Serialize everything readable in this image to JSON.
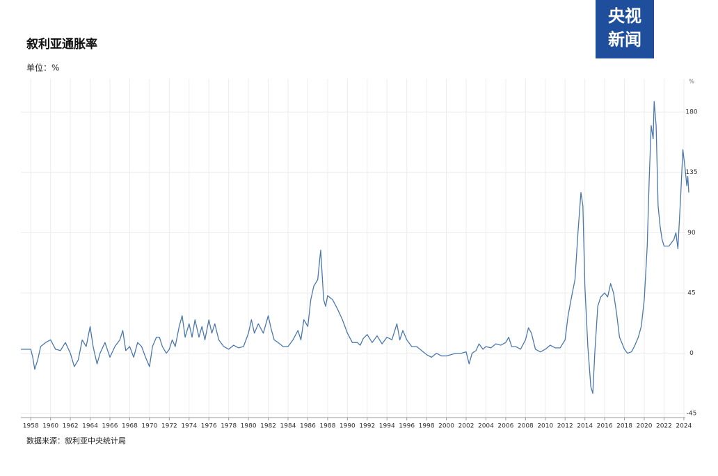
{
  "chart_data": {
    "type": "line",
    "title": "叙利亚通胀率",
    "subtitle": "单位：%",
    "y_unit": "%",
    "source": "数据来源：叙利亚中央统计局",
    "logo": [
      "央视",
      "新闻"
    ],
    "grid": true,
    "xlim": [
      1957,
      2024.5
    ],
    "xticks": [
      1958,
      1960,
      1962,
      1964,
      1966,
      1968,
      1970,
      1972,
      1974,
      1976,
      1978,
      1980,
      1982,
      1984,
      1986,
      1988,
      1990,
      1992,
      1994,
      1996,
      1998,
      2000,
      2002,
      2004,
      2006,
      2008,
      2010,
      2012,
      2014,
      2016,
      2018,
      2020,
      2022,
      2024
    ],
    "ylim": [
      -48,
      205
    ],
    "yticks": [
      -45,
      0,
      45,
      90,
      135,
      180
    ],
    "x": [
      1957,
      1957.5,
      1958,
      1958.2,
      1958.4,
      1958.7,
      1959,
      1959.5,
      1960,
      1960.5,
      1961,
      1961.5,
      1962,
      1962.4,
      1962.8,
      1963.2,
      1963.6,
      1964,
      1964.3,
      1964.7,
      1965,
      1965.5,
      1966,
      1966.5,
      1967,
      1967.3,
      1967.6,
      1968,
      1968.4,
      1968.8,
      1969.2,
      1969.6,
      1970,
      1970.3,
      1970.7,
      1971,
      1971.3,
      1971.7,
      1972,
      1972.3,
      1972.6,
      1973,
      1973.3,
      1973.6,
      1974,
      1974.3,
      1974.6,
      1975,
      1975.3,
      1975.6,
      1976,
      1976.3,
      1976.6,
      1977,
      1977.5,
      1978,
      1978.5,
      1979,
      1979.5,
      1980,
      1980.3,
      1980.6,
      1981,
      1981.5,
      1982,
      1982.3,
      1982.6,
      1983,
      1983.5,
      1984,
      1984.5,
      1985,
      1985.3,
      1985.6,
      1986,
      1986.3,
      1986.6,
      1987,
      1987.3,
      1987.6,
      1987.8,
      1988,
      1988.5,
      1989,
      1989.5,
      1990,
      1990.5,
      1991,
      1991.3,
      1991.6,
      1992,
      1992.5,
      1993,
      1993.5,
      1994,
      1994.5,
      1995,
      1995.3,
      1995.6,
      1996,
      1996.5,
      1997,
      1997.5,
      1998,
      1998.5,
      1999,
      1999.5,
      2000,
      2000.5,
      2001,
      2001.5,
      2002,
      2002.3,
      2002.6,
      2003,
      2003.3,
      2003.7,
      2004,
      2004.5,
      2005,
      2005.5,
      2006,
      2006.3,
      2006.6,
      2007,
      2007.5,
      2008,
      2008.3,
      2008.6,
      2009,
      2009.5,
      2010,
      2010.5,
      2011,
      2011.5,
      2012,
      2012.3,
      2012.6,
      2013,
      2013.3,
      2013.6,
      2013.8,
      2014,
      2014.3,
      2014.6,
      2014.8,
      2015,
      2015.3,
      2015.6,
      2016,
      2016.3,
      2016.6,
      2016.9,
      2017.2,
      2017.5,
      2018,
      2018.3,
      2018.7,
      2019,
      2019.4,
      2019.7,
      2020,
      2020.3,
      2020.5,
      2020.7,
      2020.9,
      2021,
      2021.2,
      2021.4,
      2021.6,
      2021.8,
      2022,
      2022.5,
      2023,
      2023.2,
      2023.4,
      2023.7,
      2023.9,
      2024.1,
      2024.3,
      2024.4,
      2024.5
    ],
    "series": [
      {
        "color": "#4a78ad",
        "values": [
          3,
          3,
          3,
          -3,
          -12,
          -5,
          5,
          8,
          10,
          3,
          2,
          8,
          0,
          -10,
          -5,
          10,
          5,
          20,
          5,
          -8,
          0,
          8,
          -3,
          5,
          10,
          17,
          2,
          5,
          -3,
          8,
          5,
          -3,
          -10,
          5,
          12,
          12,
          5,
          0,
          3,
          10,
          5,
          20,
          28,
          12,
          22,
          12,
          25,
          12,
          20,
          10,
          25,
          15,
          22,
          10,
          5,
          3,
          6,
          4,
          5,
          15,
          25,
          15,
          22,
          15,
          28,
          18,
          10,
          8,
          5,
          5,
          10,
          17,
          10,
          25,
          20,
          40,
          50,
          55,
          77,
          40,
          35,
          43,
          40,
          33,
          25,
          15,
          8,
          8,
          6,
          11,
          14,
          8,
          13,
          7,
          12,
          10,
          22,
          10,
          17,
          10,
          5,
          5,
          2,
          -1,
          -3,
          0,
          -2,
          -2,
          -1,
          0,
          0,
          1,
          -8,
          0,
          2,
          7,
          3,
          5,
          4,
          7,
          6,
          8,
          12,
          5,
          5,
          3,
          10,
          19,
          15,
          3,
          1,
          3,
          6,
          4,
          4,
          10,
          28,
          40,
          55,
          90,
          120,
          110,
          50,
          5,
          -25,
          -30,
          0,
          35,
          42,
          45,
          42,
          52,
          45,
          30,
          12,
          3,
          0,
          1,
          5,
          12,
          20,
          40,
          80,
          130,
          170,
          160,
          188,
          170,
          110,
          95,
          85,
          80,
          80,
          85,
          90,
          78,
          120,
          152,
          140,
          125,
          132,
          120
        ]
      }
    ]
  }
}
